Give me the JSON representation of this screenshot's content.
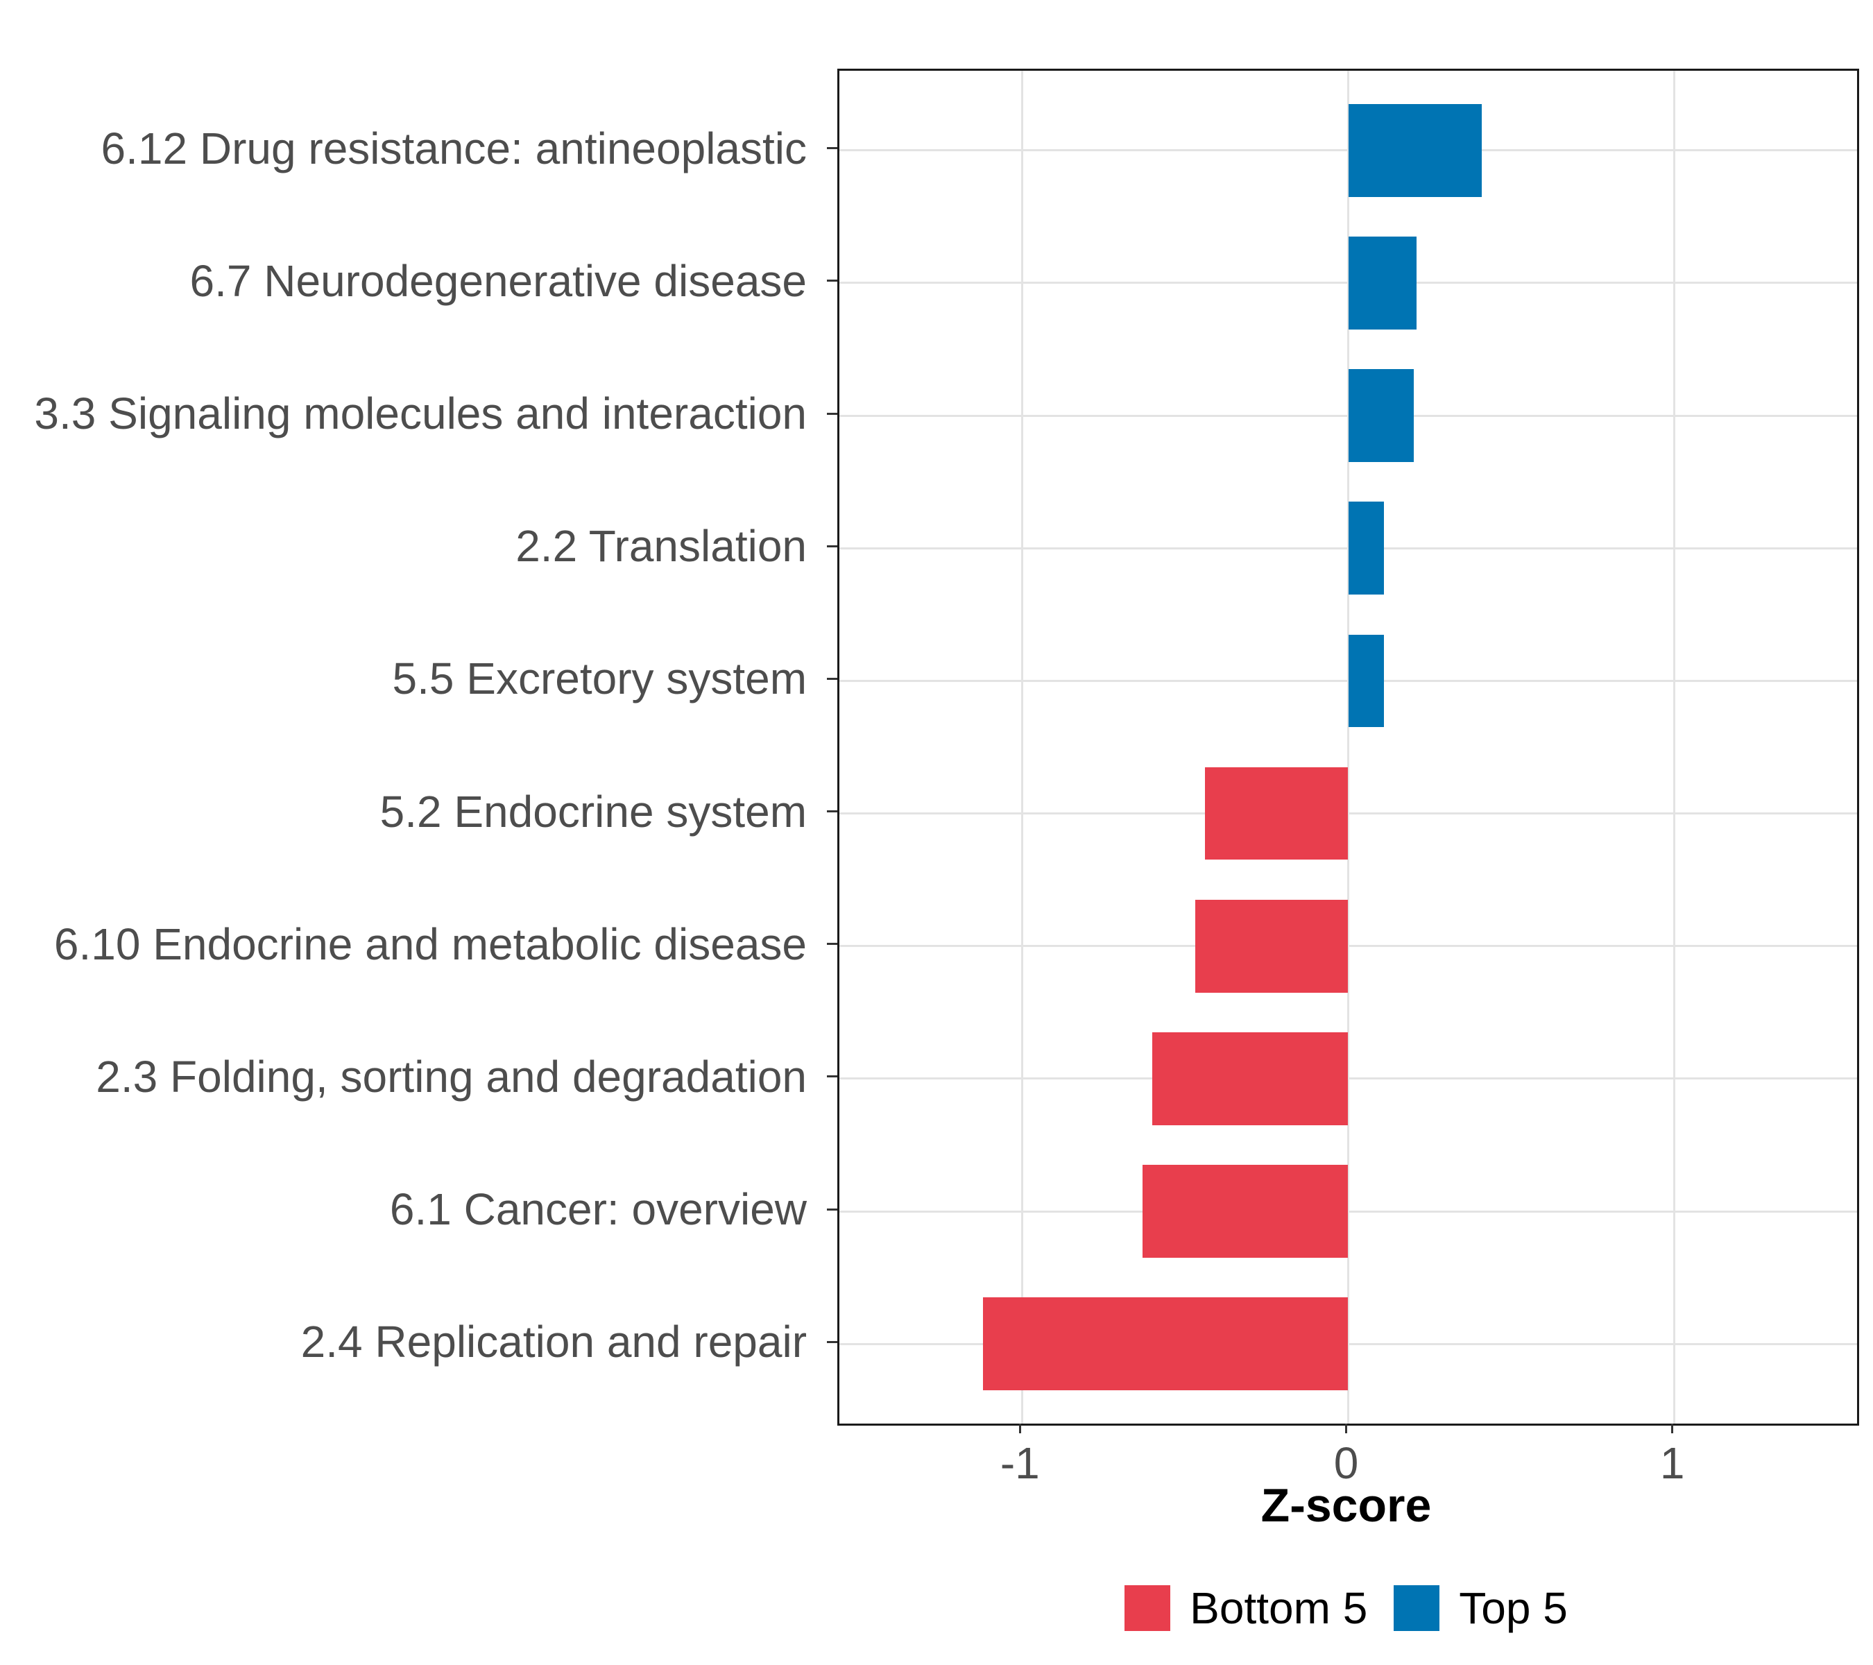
{
  "chart_data": {
    "type": "bar",
    "orientation": "horizontal",
    "title": "",
    "xlabel": "Z-score",
    "ylabel": "",
    "categories": [
      "6.12 Drug resistance: antineoplastic",
      "6.7 Neurodegenerative disease",
      "3.3 Signaling molecules and interaction",
      "2.2 Translation",
      "5.5 Excretory system",
      "5.2 Endocrine system",
      "6.10 Endocrine and metabolic disease",
      "2.3 Folding, sorting and degradation",
      "6.1 Cancer: overview",
      "2.4 Replication and repair"
    ],
    "values": [
      0.41,
      0.21,
      0.2,
      0.11,
      0.11,
      -0.44,
      -0.47,
      -0.6,
      -0.63,
      -1.12
    ],
    "groups": [
      "Top 5",
      "Top 5",
      "Top 5",
      "Top 5",
      "Top 5",
      "Bottom 5",
      "Bottom 5",
      "Bottom 5",
      "Bottom 5",
      "Bottom 5"
    ],
    "xlim": [
      -1.56,
      1.56
    ],
    "x_ticks": [
      {
        "value": -1,
        "label": "-1"
      },
      {
        "value": 0,
        "label": "0"
      },
      {
        "value": 1,
        "label": "1"
      }
    ],
    "grid": "major",
    "legend_position": "bottom",
    "legend": [
      {
        "label": "Bottom 5",
        "color": "#E83E4D"
      },
      {
        "label": "Top 5",
        "color": "#0074B3"
      }
    ]
  },
  "colors": {
    "bottom5": "#E83E4D",
    "top5": "#0074B3",
    "grid": "#E3E3E3",
    "panel_border": "#1A1A1A",
    "axis_text": "#4D4D4D",
    "tick_mark": "#333333",
    "axis_title": "#000000",
    "background": "#FFFFFF"
  }
}
